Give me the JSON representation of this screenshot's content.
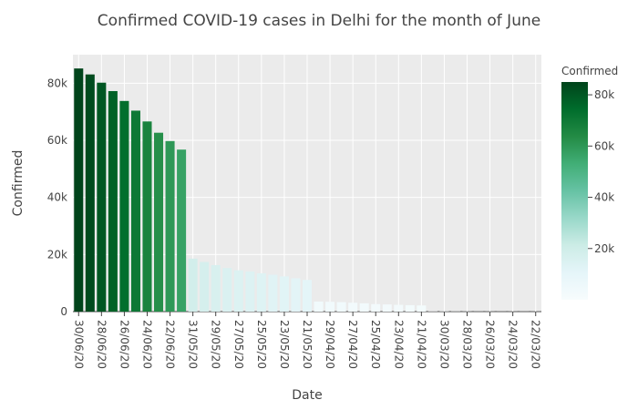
{
  "chart_data": {
    "type": "bar",
    "title": "Confirmed COVID-19 cases in Delhi for the month of June",
    "xlabel": "Date",
    "ylabel": "Confirmed",
    "ylim": [
      0,
      90000
    ],
    "yticks": [
      0,
      20000,
      40000,
      60000,
      80000
    ],
    "ytick_labels": [
      "0",
      "20k",
      "40k",
      "60k",
      "80k"
    ],
    "xtick_labels": [
      "30/06/20",
      "28/06/20",
      "26/06/20",
      "24/06/20",
      "22/06/20",
      "31/05/20",
      "29/05/20",
      "27/05/20",
      "25/05/20",
      "23/05/20",
      "21/05/20",
      "29/04/20",
      "27/04/20",
      "25/04/20",
      "23/04/20",
      "21/04/20",
      "30/03/20",
      "28/03/20",
      "26/03/20",
      "24/03/20",
      "22/03/20"
    ],
    "grid": true,
    "colorbar": {
      "title": "Confirmed",
      "range": [
        0,
        85000
      ],
      "ticks": [
        20000,
        40000,
        60000,
        80000
      ],
      "tick_labels": [
        "20k",
        "40k",
        "60k",
        "80k"
      ],
      "colors": [
        "#f7fcfd",
        "#e5f5f9",
        "#ccece6",
        "#99d8c9",
        "#66c2a4",
        "#41ae76",
        "#238b45",
        "#006d2c",
        "#00441b"
      ]
    },
    "bars": [
      {
        "date": "30/06/20",
        "value": 85161
      },
      {
        "date": "29/06/20",
        "value": 83077
      },
      {
        "date": "28/06/20",
        "value": 80188
      },
      {
        "date": "27/06/20",
        "value": 77240
      },
      {
        "date": "26/06/20",
        "value": 73780
      },
      {
        "date": "25/06/20",
        "value": 70390
      },
      {
        "date": "24/06/20",
        "value": 66602
      },
      {
        "date": "23/06/20",
        "value": 62655
      },
      {
        "date": "22/06/20",
        "value": 59746
      },
      {
        "date": "21/06/20",
        "value": 56746
      },
      {
        "date": "31/05/20",
        "value": 18549
      },
      {
        "date": "30/05/20",
        "value": 17387
      },
      {
        "date": "29/05/20",
        "value": 16281
      },
      {
        "date": "28/05/20",
        "value": 15257
      },
      {
        "date": "27/05/20",
        "value": 14465
      },
      {
        "date": "26/05/20",
        "value": 14053
      },
      {
        "date": "25/05/20",
        "value": 13418
      },
      {
        "date": "24/05/20",
        "value": 12910
      },
      {
        "date": "23/05/20",
        "value": 12319
      },
      {
        "date": "22/05/20",
        "value": 11659
      },
      {
        "date": "21/05/20",
        "value": 11088
      },
      {
        "date": "30/04/20",
        "value": 3515
      },
      {
        "date": "29/04/20",
        "value": 3439
      },
      {
        "date": "28/04/20",
        "value": 3314
      },
      {
        "date": "27/04/20",
        "value": 3108
      },
      {
        "date": "26/04/20",
        "value": 2918
      },
      {
        "date": "25/04/20",
        "value": 2625
      },
      {
        "date": "24/04/20",
        "value": 2514
      },
      {
        "date": "23/04/20",
        "value": 2376
      },
      {
        "date": "22/04/20",
        "value": 2248
      },
      {
        "date": "21/04/20",
        "value": 2156
      },
      {
        "date": "31/03/20",
        "value": 97
      },
      {
        "date": "30/03/20",
        "value": 87
      },
      {
        "date": "29/03/20",
        "value": 72
      },
      {
        "date": "28/03/20",
        "value": 49
      },
      {
        "date": "27/03/20",
        "value": 39
      },
      {
        "date": "26/03/20",
        "value": 36
      },
      {
        "date": "25/03/20",
        "value": 31
      },
      {
        "date": "24/03/20",
        "value": 30
      },
      {
        "date": "23/03/20",
        "value": 29
      },
      {
        "date": "22/03/20",
        "value": 27
      }
    ]
  }
}
